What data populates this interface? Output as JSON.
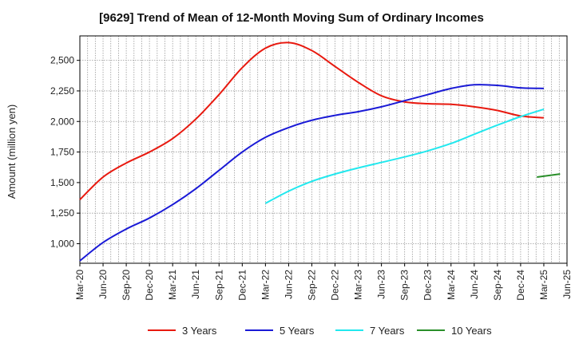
{
  "chart_data": {
    "type": "line",
    "title": "[9629]  Trend of Mean of 12-Month Moving Sum of Ordinary Incomes",
    "xlabel": "",
    "ylabel": "Amount (million yen)",
    "ylim": [
      840,
      2700
    ],
    "yticks": [
      1000,
      1250,
      1500,
      1750,
      2000,
      2250,
      2500
    ],
    "ytick_labels": [
      "1,000",
      "1,250",
      "1,500",
      "1,750",
      "2,000",
      "2,250",
      "2,500"
    ],
    "x_tick_labels": [
      "Mar-20",
      "Jun-20",
      "Sep-20",
      "Dec-20",
      "Mar-21",
      "Jun-21",
      "Sep-21",
      "Dec-21",
      "Mar-22",
      "Jun-22",
      "Sep-22",
      "Dec-22",
      "Mar-23",
      "Jun-23",
      "Sep-23",
      "Dec-23",
      "Mar-24",
      "Jun-24",
      "Sep-24",
      "Dec-24",
      "Mar-25",
      "Jun-25"
    ],
    "grid": true,
    "legend_position": "bottom",
    "series": [
      {
        "name": "3 Years",
        "color": "#e8190f",
        "start_index": 0,
        "values": [
          1360,
          1545,
          1660,
          1750,
          1860,
          2020,
          2220,
          2440,
          2600,
          2645,
          2580,
          2450,
          2320,
          2210,
          2160,
          2145,
          2140,
          2120,
          2090,
          2045,
          2030
        ]
      },
      {
        "name": "5 Years",
        "color": "#1a1ad6",
        "start_index": 0,
        "values": [
          860,
          1010,
          1120,
          1210,
          1320,
          1450,
          1600,
          1750,
          1870,
          1950,
          2010,
          2050,
          2080,
          2120,
          2170,
          2220,
          2270,
          2300,
          2295,
          2275,
          2270
        ]
      },
      {
        "name": "7 Years",
        "color": "#22e8ee",
        "start_index": 8,
        "values": [
          1330,
          1430,
          1510,
          1570,
          1620,
          1665,
          1710,
          1760,
          1820,
          1895,
          1970,
          2040,
          2100
        ]
      },
      {
        "name": "10 Years",
        "color": "#2a8f2a",
        "start_index": 19.7,
        "values": [
          1545,
          1570
        ]
      }
    ]
  }
}
